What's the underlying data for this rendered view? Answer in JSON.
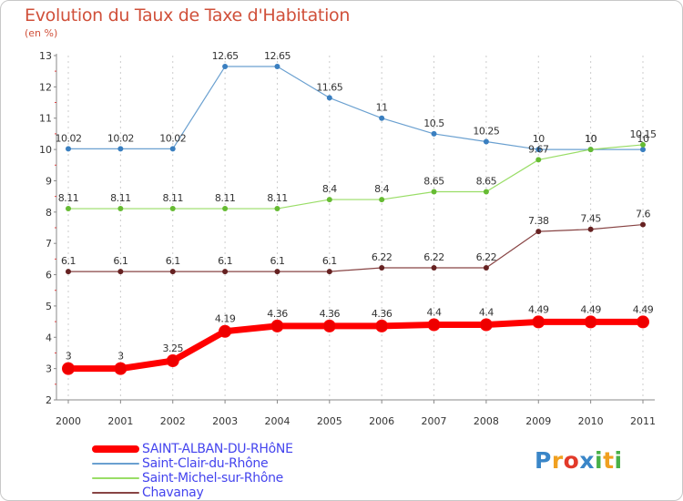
{
  "title": "Evolution du Taux de Taxe d'Habitation",
  "subtitle": "(en %)",
  "logo": {
    "text": "Proxiti",
    "colors": [
      "#3a86c8",
      "#f0a020",
      "#e23a2a",
      "#3a86c8",
      "#48b048",
      "#f0a020",
      "#48b048"
    ]
  },
  "legend": [
    {
      "label": "SAINT-ALBAN-DU-RHôNE",
      "color": "#ff0000"
    },
    {
      "label": "Saint-Clair-du-Rhône",
      "color": "#6aa0d0"
    },
    {
      "label": "Saint-Michel-sur-Rhône",
      "color": "#99dd66"
    },
    {
      "label": "Chavanay",
      "color": "#884444"
    }
  ],
  "chart_data": {
    "type": "line",
    "title": "Evolution du Taux de Taxe d'Habitation",
    "subtitle": "(en %)",
    "x": [
      "2000",
      "2001",
      "2002",
      "2003",
      "2004",
      "2005",
      "2006",
      "2007",
      "2008",
      "2009",
      "2010",
      "2011"
    ],
    "ylim": [
      2,
      13
    ],
    "yticks": [
      "2",
      "3",
      "4",
      "5",
      "6",
      "7",
      "8",
      "9",
      "10",
      "11",
      "12",
      "13"
    ],
    "grid": "vertical dashed",
    "legend_position": "bottom-left",
    "series": [
      {
        "name": "Saint-Clair-du-Rhône",
        "color": "#6aa0d0",
        "point_color": "#3a7fc0",
        "width": 1.2,
        "values": [
          10.02,
          10.02,
          10.02,
          12.65,
          12.65,
          11.65,
          11,
          10.5,
          10.25,
          10,
          10,
          10
        ],
        "labels": [
          "10.02",
          "10.02",
          "10.02",
          "12.65",
          "12.65",
          "11.65",
          "11",
          "10.5",
          "10.25",
          "10",
          "10",
          "10"
        ]
      },
      {
        "name": "Saint-Michel-sur-Rhône",
        "color": "#99dd66",
        "point_color": "#66bb33",
        "width": 1.2,
        "values": [
          8.11,
          8.11,
          8.11,
          8.11,
          8.11,
          8.4,
          8.4,
          8.65,
          8.65,
          9.67,
          10,
          10.15
        ],
        "labels": [
          "8.11",
          "8.11",
          "8.11",
          "8.11",
          "8.11",
          "8.4",
          "8.4",
          "8.65",
          "8.65",
          "9.67",
          "10",
          "10.15"
        ]
      },
      {
        "name": "Chavanay",
        "color": "#884444",
        "point_color": "#662222",
        "width": 1.2,
        "values": [
          6.1,
          6.1,
          6.1,
          6.1,
          6.1,
          6.1,
          6.22,
          6.22,
          6.22,
          7.38,
          7.45,
          7.6
        ],
        "labels": [
          "6.1",
          "6.1",
          "6.1",
          "6.1",
          "6.1",
          "6.1",
          "6.22",
          "6.22",
          "6.22",
          "7.38",
          "7.45",
          "7.6"
        ]
      },
      {
        "name": "SAINT-ALBAN-DU-RHôNE",
        "color": "#ff0000",
        "point_color": "#ee0000",
        "width": 7,
        "values": [
          3,
          3,
          3.25,
          4.19,
          4.36,
          4.36,
          4.36,
          4.4,
          4.4,
          4.49,
          4.49,
          4.49
        ],
        "labels": [
          "3",
          "3",
          "3.25",
          "4.19",
          "4.36",
          "4.36",
          "4.36",
          "4.4",
          "4.4",
          "4.49",
          "4.49",
          "4.49"
        ]
      }
    ]
  }
}
